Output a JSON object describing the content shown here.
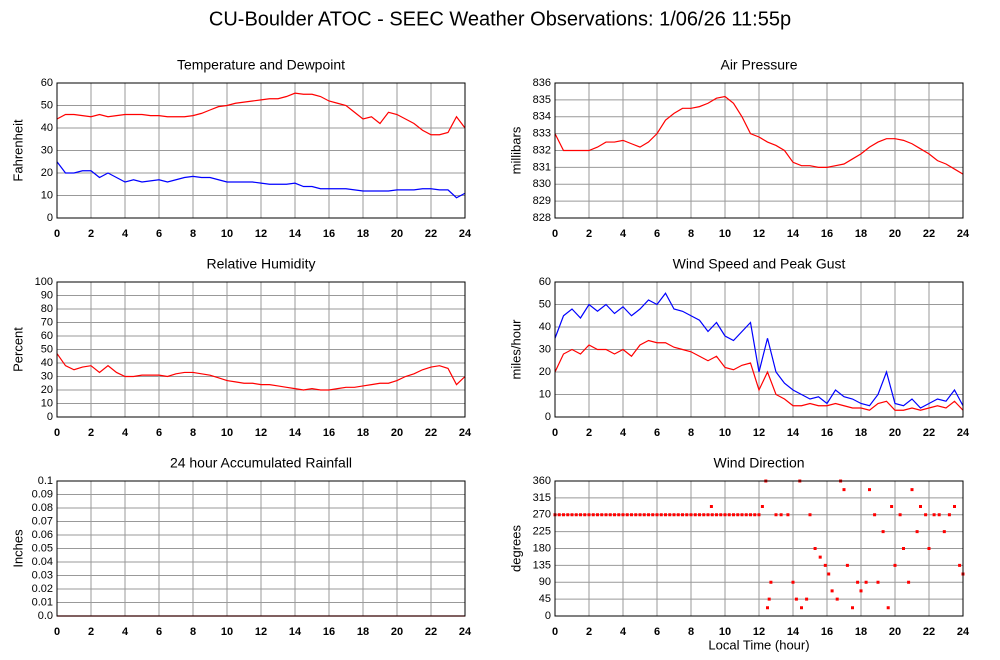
{
  "title": "CU-Boulder ATOC - SEEC Weather Observations: 1/06/26 11:55p",
  "chart_data": [
    {
      "type": "line",
      "title": "Temperature and Dewpoint",
      "ylabel": "Fahrenheit",
      "x": [
        0,
        0.5,
        1,
        1.5,
        2,
        2.5,
        3,
        3.5,
        4,
        4.5,
        5,
        5.5,
        6,
        6.5,
        7,
        7.5,
        8,
        8.5,
        9,
        9.5,
        10,
        10.5,
        11,
        11.5,
        12,
        12.5,
        13,
        13.5,
        14,
        14.5,
        15,
        15.5,
        16,
        16.5,
        17,
        17.5,
        18,
        18.5,
        19,
        19.5,
        20,
        20.5,
        21,
        21.5,
        22,
        22.5,
        23,
        23.5,
        24
      ],
      "series": [
        {
          "color": "#ff0000",
          "values": [
            44,
            46,
            46,
            45.5,
            45,
            46,
            45,
            45.5,
            46,
            46,
            46,
            45.5,
            45.5,
            45,
            45,
            45,
            45.5,
            46.5,
            48,
            49.5,
            50,
            51,
            51.5,
            52,
            52.5,
            53,
            53,
            54,
            55.5,
            55,
            55,
            54,
            52,
            51,
            50,
            47,
            44,
            45,
            42,
            47,
            46,
            44,
            42,
            39,
            37,
            37,
            38,
            45,
            40
          ]
        },
        {
          "color": "#0000ff",
          "values": [
            25,
            20,
            20,
            21,
            21,
            18,
            20,
            18,
            16,
            17,
            16,
            16.5,
            17,
            16,
            17,
            18,
            18.5,
            18,
            18,
            17,
            16,
            16,
            16,
            16,
            15.5,
            15,
            15,
            15,
            15.5,
            14,
            14,
            13,
            13,
            13,
            13,
            12.5,
            12,
            12,
            12,
            12,
            12.5,
            12.5,
            12.5,
            13,
            13,
            12.5,
            12.5,
            9,
            11
          ]
        }
      ],
      "xlim": [
        0,
        24
      ],
      "xticks": [
        0,
        2,
        4,
        6,
        8,
        10,
        12,
        14,
        16,
        18,
        20,
        22,
        24
      ],
      "ylim": [
        0,
        60
      ],
      "yticks": [
        0,
        10,
        20,
        30,
        40,
        50,
        60
      ],
      "grid": true
    },
    {
      "type": "line",
      "title": "Air Pressure",
      "ylabel": "millibars",
      "x": [
        0,
        0.5,
        1,
        1.5,
        2,
        2.5,
        3,
        3.5,
        4,
        4.5,
        5,
        5.5,
        6,
        6.5,
        7,
        7.5,
        8,
        8.5,
        9,
        9.5,
        10,
        10.5,
        11,
        11.5,
        12,
        12.5,
        13,
        13.5,
        14,
        14.5,
        15,
        15.5,
        16,
        16.5,
        17,
        17.5,
        18,
        18.5,
        19,
        19.5,
        20,
        20.5,
        21,
        21.5,
        22,
        22.5,
        23,
        23.5,
        24
      ],
      "series": [
        {
          "color": "#ff0000",
          "values": [
            833,
            832,
            832,
            832,
            832,
            832.2,
            832.5,
            832.5,
            832.6,
            832.4,
            832.2,
            832.5,
            833,
            833.8,
            834.2,
            834.5,
            834.5,
            834.6,
            834.8,
            835.1,
            835.2,
            834.8,
            834,
            833,
            832.8,
            832.5,
            832.3,
            832,
            831.3,
            831.1,
            831.1,
            831,
            831,
            831.1,
            831.2,
            831.5,
            831.8,
            832.2,
            832.5,
            832.7,
            832.7,
            832.6,
            832.4,
            832.1,
            831.8,
            831.4,
            831.2,
            830.9,
            830.6
          ]
        }
      ],
      "xlim": [
        0,
        24
      ],
      "xticks": [
        0,
        2,
        4,
        6,
        8,
        10,
        12,
        14,
        16,
        18,
        20,
        22,
        24
      ],
      "ylim": [
        828,
        836
      ],
      "yticks": [
        828,
        829,
        830,
        831,
        832,
        833,
        834,
        835,
        836
      ],
      "grid": true
    },
    {
      "type": "line",
      "title": "Relative Humidity",
      "ylabel": "Percent",
      "x": [
        0,
        0.5,
        1,
        1.5,
        2,
        2.5,
        3,
        3.5,
        4,
        4.5,
        5,
        5.5,
        6,
        6.5,
        7,
        7.5,
        8,
        8.5,
        9,
        9.5,
        10,
        10.5,
        11,
        11.5,
        12,
        12.5,
        13,
        13.5,
        14,
        14.5,
        15,
        15.5,
        16,
        16.5,
        17,
        17.5,
        18,
        18.5,
        19,
        19.5,
        20,
        20.5,
        21,
        21.5,
        22,
        22.5,
        23,
        23.5,
        24
      ],
      "series": [
        {
          "color": "#ff0000",
          "values": [
            47,
            38,
            35,
            37,
            38,
            33,
            38,
            33,
            30,
            30,
            31,
            31,
            31,
            30,
            32,
            33,
            33,
            32,
            31,
            29,
            27,
            26,
            25,
            25,
            24,
            24,
            23,
            22,
            21,
            20,
            21,
            20,
            20,
            21,
            22,
            22,
            23,
            24,
            25,
            25,
            27,
            30,
            32,
            35,
            37,
            38,
            36,
            24,
            30
          ]
        }
      ],
      "xlim": [
        0,
        24
      ],
      "xticks": [
        0,
        2,
        4,
        6,
        8,
        10,
        12,
        14,
        16,
        18,
        20,
        22,
        24
      ],
      "ylim": [
        0,
        100
      ],
      "yticks": [
        0,
        10,
        20,
        30,
        40,
        50,
        60,
        70,
        80,
        90,
        100
      ],
      "grid": true
    },
    {
      "type": "line",
      "title": "Wind Speed and Peak Gust",
      "ylabel": "miles/hour",
      "x": [
        0,
        0.5,
        1,
        1.5,
        2,
        2.5,
        3,
        3.5,
        4,
        4.5,
        5,
        5.5,
        6,
        6.5,
        7,
        7.5,
        8,
        8.5,
        9,
        9.5,
        10,
        10.5,
        11,
        11.5,
        12,
        12.5,
        13,
        13.5,
        14,
        14.5,
        15,
        15.5,
        16,
        16.5,
        17,
        17.5,
        18,
        18.5,
        19,
        19.5,
        20,
        20.5,
        21,
        21.5,
        22,
        22.5,
        23,
        23.5,
        24
      ],
      "series": [
        {
          "color": "#0000ff",
          "values": [
            35,
            45,
            48,
            44,
            50,
            47,
            50,
            46,
            49,
            45,
            48,
            52,
            50,
            55,
            48,
            47,
            45,
            43,
            38,
            42,
            36,
            34,
            38,
            42,
            20,
            35,
            20,
            15,
            12,
            10,
            8,
            9,
            6,
            12,
            9,
            8,
            6,
            5,
            10,
            20,
            6,
            5,
            8,
            4,
            6,
            8,
            7,
            12,
            5
          ]
        },
        {
          "color": "#ff0000",
          "values": [
            20,
            28,
            30,
            28,
            32,
            30,
            30,
            28,
            30,
            27,
            32,
            34,
            33,
            33,
            31,
            30,
            29,
            27,
            25,
            27,
            22,
            21,
            23,
            24,
            12,
            20,
            10,
            8,
            5,
            5,
            6,
            5,
            5,
            6,
            5,
            4,
            4,
            3,
            6,
            7,
            3,
            3,
            4,
            3,
            4,
            5,
            4,
            7,
            3
          ]
        }
      ],
      "xlim": [
        0,
        24
      ],
      "xticks": [
        0,
        2,
        4,
        6,
        8,
        10,
        12,
        14,
        16,
        18,
        20,
        22,
        24
      ],
      "ylim": [
        0,
        60
      ],
      "yticks": [
        0,
        10,
        20,
        30,
        40,
        50,
        60
      ],
      "grid": true
    },
    {
      "type": "line",
      "title": "24 hour Accumulated Rainfall",
      "ylabel": "Inches",
      "x": [
        0,
        1,
        2,
        3,
        4,
        5,
        6,
        7,
        8,
        9,
        10,
        11,
        12,
        13,
        14,
        15,
        16,
        17,
        18,
        19,
        20,
        21,
        22,
        23,
        24
      ],
      "series": [
        {
          "color": "#ff0000",
          "values": [
            0,
            0,
            0,
            0,
            0,
            0,
            0,
            0,
            0,
            0,
            0,
            0,
            0,
            0,
            0,
            0,
            0,
            0,
            0,
            0,
            0,
            0,
            0,
            0,
            0
          ]
        }
      ],
      "xlim": [
        0,
        24
      ],
      "xticks": [
        0,
        2,
        4,
        6,
        8,
        10,
        12,
        14,
        16,
        18,
        20,
        22,
        24
      ],
      "ylim": [
        0,
        0.1
      ],
      "yticks": [
        {
          "value": 0,
          "label": "0.0"
        },
        0.01,
        0.02,
        0.03,
        0.04,
        0.05,
        0.06,
        0.07,
        0.08,
        0.09,
        0.1
      ],
      "grid": true
    },
    {
      "type": "scatter",
      "title": "Wind Direction",
      "ylabel": "degrees",
      "xlabel": "Local Time (hour)",
      "x": [
        0,
        0.25,
        0.5,
        0.75,
        1,
        1.25,
        1.5,
        1.75,
        2,
        2.25,
        2.5,
        2.75,
        3,
        3.25,
        3.5,
        3.75,
        4,
        4.25,
        4.5,
        4.75,
        5,
        5.25,
        5.5,
        5.75,
        6,
        6.25,
        6.5,
        6.75,
        7,
        7.25,
        7.5,
        7.75,
        8,
        8.25,
        8.5,
        8.75,
        9,
        9.25,
        9.5,
        9.75,
        10,
        10.25,
        10.5,
        10.75,
        11,
        11.25,
        11.5,
        11.75,
        12,
        9.2,
        12.2,
        12.4,
        12.6,
        12.7,
        12.5,
        13,
        13.3,
        13.7,
        14,
        14.2,
        14.4,
        14.5,
        14.8,
        15,
        15.3,
        15.6,
        15.9,
        16.1,
        16.3,
        16.6,
        16.8,
        17,
        17.2,
        17.5,
        17.8,
        18,
        18.3,
        18.5,
        18.8,
        19,
        19.3,
        19.6,
        19.8,
        20,
        20.3,
        20.5,
        20.8,
        21,
        21.3,
        21.5,
        21.8,
        22,
        22.3,
        22.6,
        22.9,
        23.2,
        23.5,
        23.8,
        24
      ],
      "values": [
        270,
        270,
        270,
        270,
        270,
        270,
        270,
        270,
        270,
        270,
        270,
        270,
        270,
        270,
        270,
        270,
        270,
        270,
        270,
        270,
        270,
        270,
        270,
        270,
        270,
        270,
        270,
        270,
        270,
        270,
        270,
        270,
        270,
        270,
        270,
        270,
        270,
        270,
        270,
        270,
        270,
        270,
        270,
        270,
        270,
        270,
        270,
        270,
        270,
        292,
        292,
        360,
        45,
        90,
        22,
        270,
        270,
        270,
        90,
        45,
        360,
        22,
        45,
        270,
        180,
        157,
        135,
        112,
        67,
        45,
        360,
        337,
        135,
        22,
        90,
        67,
        90,
        337,
        270,
        90,
        225,
        22,
        292,
        135,
        270,
        180,
        90,
        337,
        225,
        292,
        270,
        180,
        270,
        270,
        225,
        270,
        292,
        135,
        112
      ],
      "color": "#ff0000",
      "xlim": [
        0,
        24
      ],
      "xticks": [
        0,
        2,
        4,
        6,
        8,
        10,
        12,
        14,
        16,
        18,
        20,
        22,
        24
      ],
      "ylim": [
        0,
        360
      ],
      "yticks": [
        0,
        45,
        90,
        135,
        180,
        225,
        270,
        315,
        360
      ],
      "grid": true
    }
  ]
}
